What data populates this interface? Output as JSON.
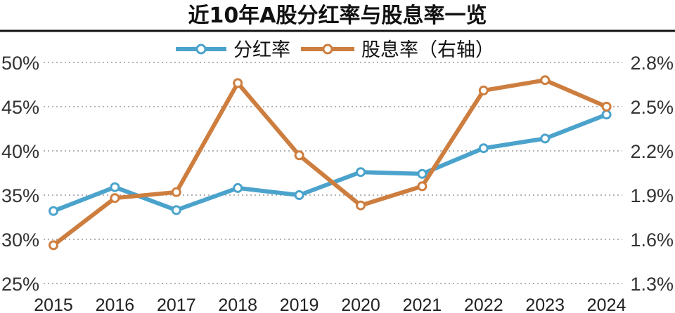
{
  "chart_data": {
    "type": "line",
    "title": "近10年A股分红率与股息率一览",
    "categories": [
      "2015",
      "2016",
      "2017",
      "2018",
      "2019",
      "2020",
      "2021",
      "2022",
      "2023",
      "2024"
    ],
    "y_left": {
      "ticks": [
        "50%",
        "45%",
        "40%",
        "35%",
        "30%",
        "25%"
      ],
      "range": [
        25,
        50
      ]
    },
    "y_right": {
      "ticks": [
        "2.8%",
        "2.5%",
        "2.2%",
        "1.9%",
        "1.6%",
        "1.3%"
      ],
      "range": [
        1.3,
        2.8
      ]
    },
    "grid": "dotted horizontal",
    "legend_position": "top-center",
    "series": [
      {
        "name": "分红率",
        "axis": "left",
        "color": "#4ba3cc",
        "values": [
          33.2,
          35.9,
          33.3,
          35.8,
          35.0,
          37.6,
          37.4,
          40.3,
          41.4,
          44.1
        ]
      },
      {
        "name": "股息率（右轴）",
        "axis": "right",
        "color": "#cd7e3f",
        "values": [
          1.56,
          1.88,
          1.92,
          2.66,
          2.17,
          1.83,
          1.96,
          2.61,
          2.68,
          2.5
        ]
      }
    ]
  }
}
